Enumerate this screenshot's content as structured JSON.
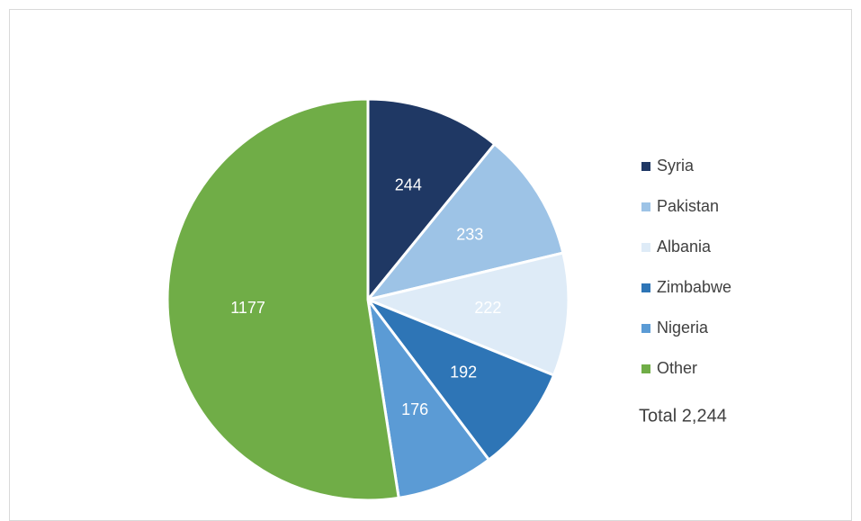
{
  "chart_data": {
    "type": "pie",
    "categories": [
      "Syria",
      "Pakistan",
      "Albania",
      "Zimbabwe",
      "Nigeria",
      "Other"
    ],
    "values": [
      244,
      233,
      222,
      192,
      176,
      1177
    ],
    "colors": [
      "#1f3864",
      "#9dc3e6",
      "#deebf7",
      "#2e75b6",
      "#5b9bd5",
      "#70ad47"
    ],
    "legend": "right",
    "annotation": "Total 2,244"
  }
}
